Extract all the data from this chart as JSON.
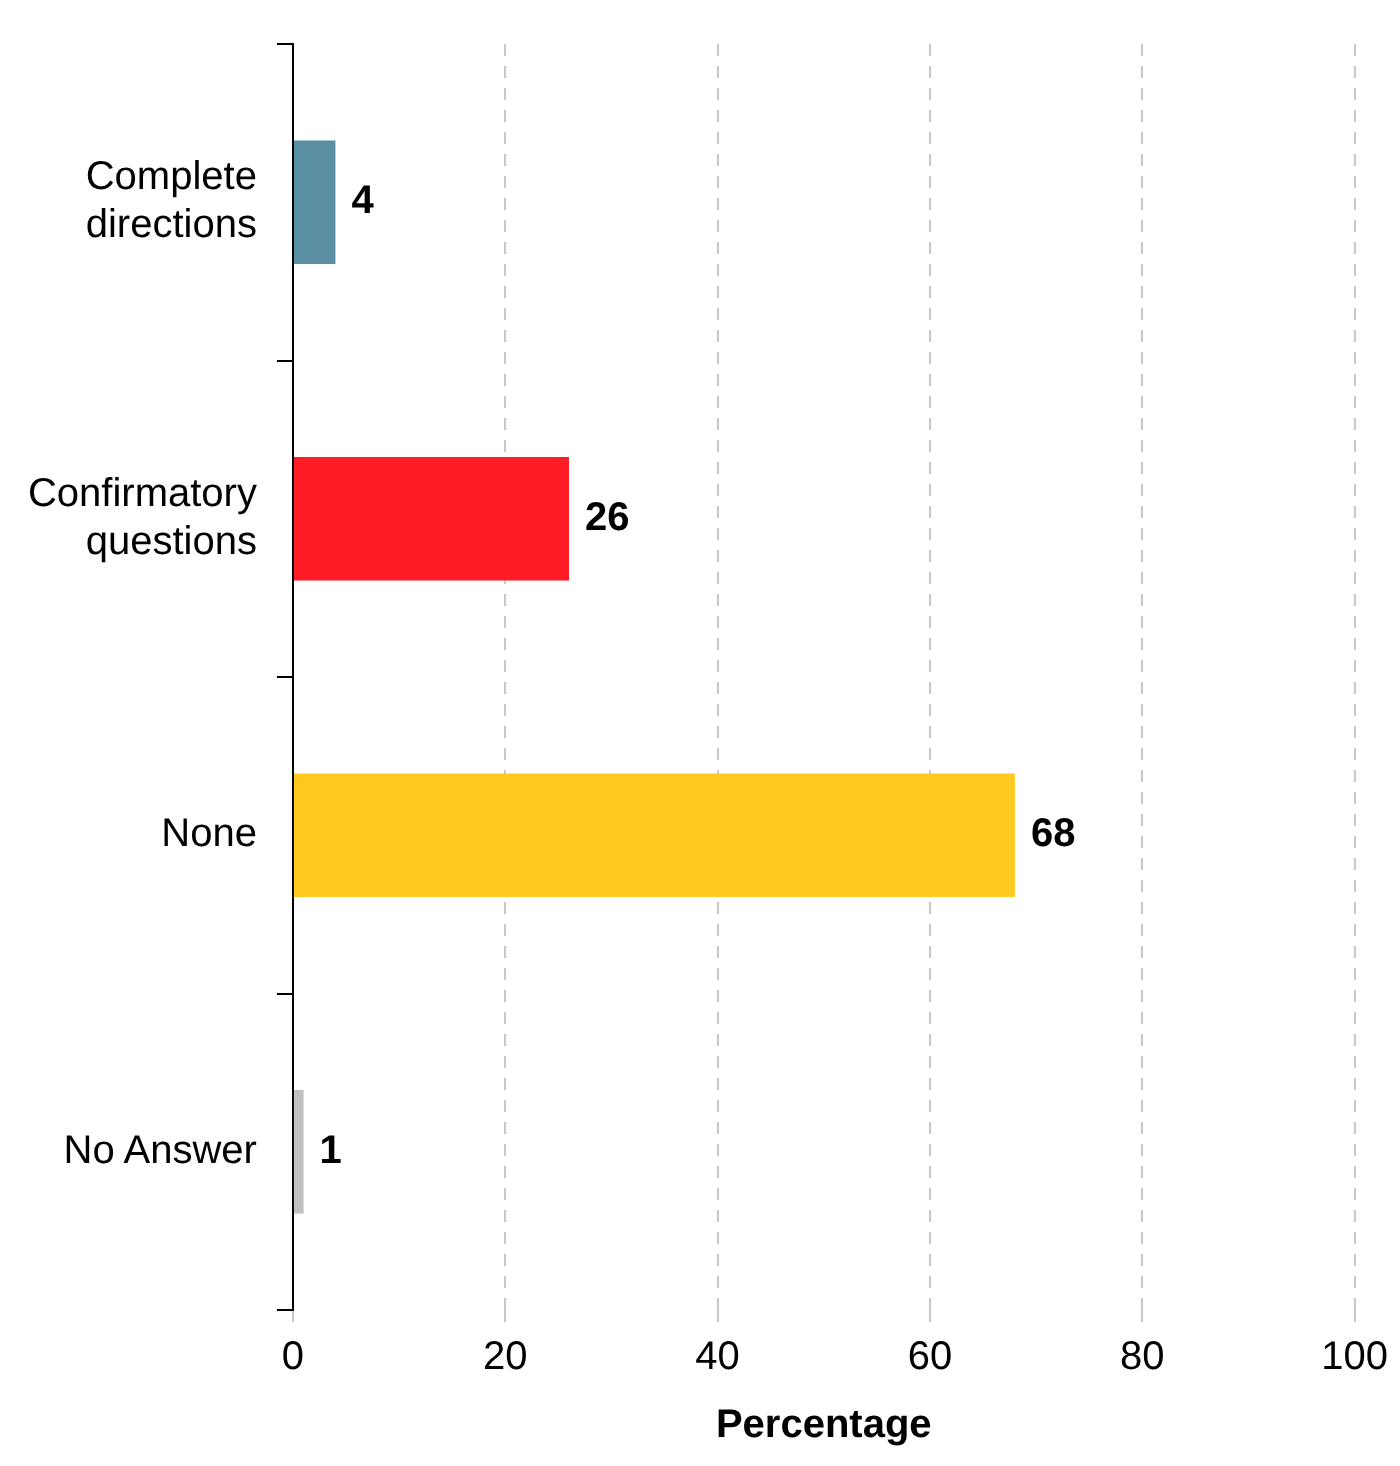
{
  "chart_data": {
    "type": "bar",
    "orientation": "horizontal",
    "xlabel": "Percentage",
    "categories": [
      "Complete\ndirections",
      "Confirmatory\nquestions",
      "None",
      "No Answer"
    ],
    "values": [
      4,
      26,
      68,
      1
    ],
    "colors": [
      "#5b8fa3",
      "#ff1c27",
      "#ffc91f",
      "#c0c0c0"
    ],
    "xlim": [
      0,
      100
    ],
    "xticks": [
      0,
      20,
      40,
      60,
      80,
      100
    ],
    "grid": "x",
    "legend": false,
    "data_labels": true
  }
}
